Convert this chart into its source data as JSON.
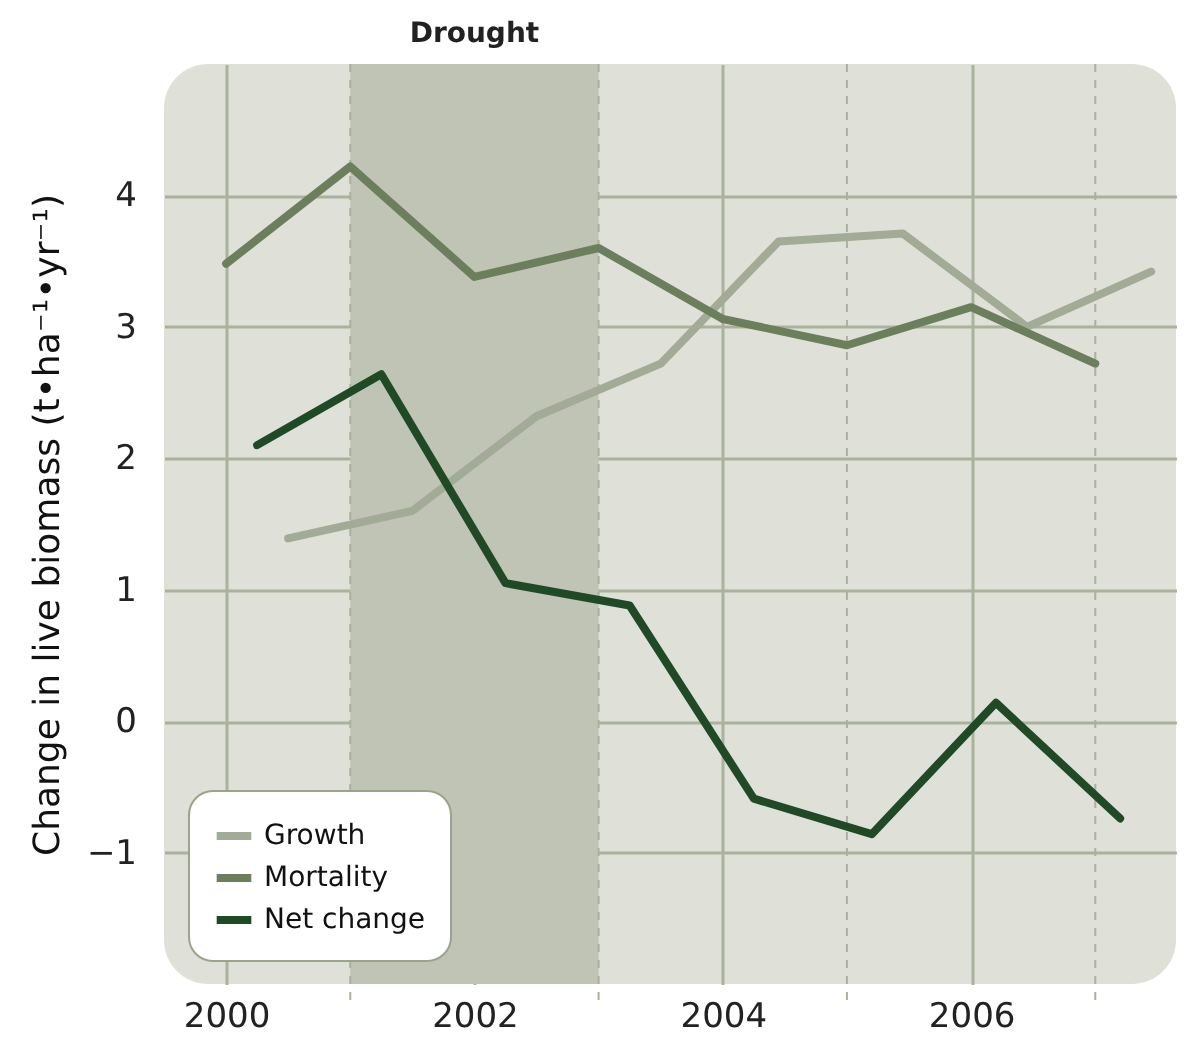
{
  "chart_data": {
    "type": "line",
    "ylabel": "Change in live biomass (t•ha⁻¹•yr⁻¹)",
    "xlim": [
      1999.5,
      2007.65
    ],
    "ylim": [
      -2,
      5
    ],
    "xticks": [
      2000,
      2002,
      2004,
      2006
    ],
    "yticks": [
      -1,
      0,
      1,
      2,
      3,
      4
    ],
    "grid": true,
    "legend": "bottom left",
    "line_style": "solid",
    "marker": "none",
    "series": [
      {
        "name": "Growth",
        "color": "#a1ab96",
        "x": [
          2000.5,
          2001.5,
          2002.5,
          2003.5,
          2004.45,
          2005.45,
          2006.45,
          2007.45
        ],
        "values": [
          1.39,
          1.6,
          2.32,
          2.72,
          3.65,
          3.71,
          3.0,
          3.42
        ]
      },
      {
        "name": "Mortality",
        "color": "#6b7f5d",
        "x": [
          2000,
          2001,
          2002,
          2003,
          2004,
          2005,
          2006,
          2007
        ],
        "values": [
          3.48,
          4.22,
          3.38,
          3.6,
          3.06,
          2.86,
          3.15,
          2.72
        ]
      },
      {
        "name": "Net change",
        "color": "#1f4a25",
        "x": [
          2000.25,
          2001.25,
          2002.25,
          2003.25,
          2004.25,
          2005.2,
          2006.2,
          2007.2
        ],
        "values": [
          2.1,
          2.64,
          1.05,
          0.88,
          -0.59,
          -0.86,
          0.14,
          -0.74
        ]
      }
    ],
    "bands": [
      {
        "axis": "x",
        "from": 2001,
        "to": 2003,
        "label": "Drought",
        "color": "#bfc4b4"
      }
    ],
    "ref_lines": [
      {
        "axis": "x",
        "value": 2001,
        "line_style": "dashed"
      },
      {
        "axis": "x",
        "value": 2003,
        "line_style": "dashed"
      },
      {
        "axis": "x",
        "value": 2005,
        "line_style": "dashed"
      },
      {
        "axis": "x",
        "value": 2007,
        "line_style": "dashed"
      }
    ]
  }
}
